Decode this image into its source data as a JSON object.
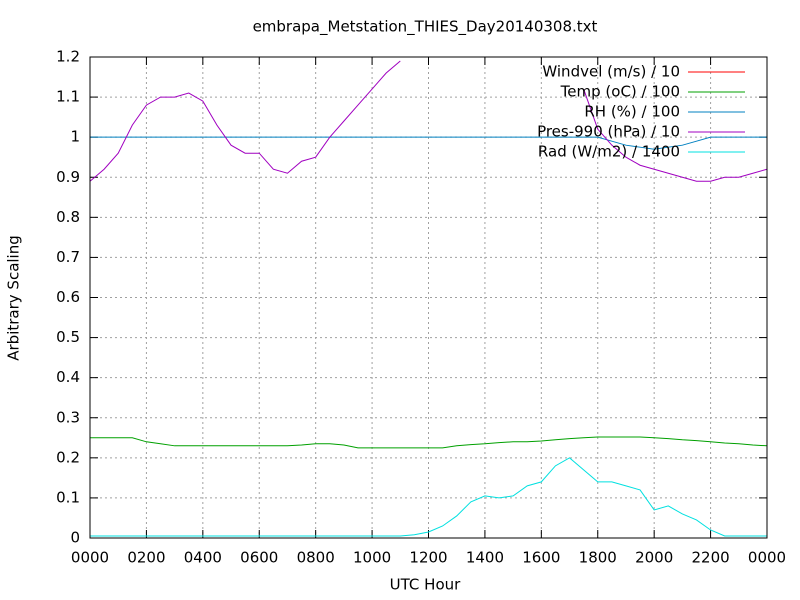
{
  "chart_data": {
    "type": "line",
    "title": "embrapa_Metstation_THIES_Day20140308.txt",
    "x_label": "UTC Hour",
    "y_label": "Arbitrary Scaling",
    "x": [
      0,
      0.5,
      1,
      1.5,
      2,
      2.5,
      3,
      3.5,
      4,
      4.5,
      5,
      5.5,
      6,
      6.5,
      7,
      7.5,
      8,
      8.5,
      9,
      9.5,
      10,
      10.5,
      11,
      11.5,
      12,
      12.5,
      13,
      13.5,
      14,
      14.5,
      15,
      15.5,
      16,
      16.5,
      17,
      17.5,
      18,
      18.5,
      19,
      19.5,
      20,
      20.5,
      21,
      21.5,
      22,
      22.5,
      23,
      23.5,
      24
    ],
    "series": [
      {
        "name": "Windvel (m/s) / 10",
        "color": "#ff0000",
        "values": [
          null,
          null,
          null,
          null,
          null,
          null,
          null,
          null,
          null,
          null,
          null,
          null,
          null,
          null,
          null,
          null,
          null,
          null,
          null,
          null,
          null,
          null,
          null,
          null,
          null,
          null,
          null,
          null,
          null,
          null,
          null,
          null,
          null,
          null,
          null,
          null,
          null,
          null,
          null,
          null,
          null,
          null,
          null,
          null,
          null,
          null,
          null,
          null,
          null
        ]
      },
      {
        "name": "Temp (oC) / 100",
        "color": "#00a000",
        "values": [
          0.25,
          0.25,
          0.25,
          0.25,
          0.24,
          0.235,
          0.23,
          0.23,
          0.23,
          0.23,
          0.23,
          0.23,
          0.23,
          0.23,
          0.23,
          0.232,
          0.235,
          0.235,
          0.232,
          0.225,
          0.225,
          0.225,
          0.225,
          0.225,
          0.225,
          0.225,
          0.23,
          0.233,
          0.235,
          0.238,
          0.24,
          0.24,
          0.242,
          0.245,
          0.248,
          0.25,
          0.252,
          0.252,
          0.252,
          0.252,
          0.25,
          0.248,
          0.245,
          0.243,
          0.24,
          0.237,
          0.235,
          0.232,
          0.23
        ]
      },
      {
        "name": "RH (%) / 100",
        "color": "#0080c0",
        "values": [
          1,
          1,
          1,
          1,
          1,
          1,
          1,
          1,
          1,
          1,
          1,
          1,
          1,
          1,
          1,
          1,
          1,
          1,
          1,
          1,
          1,
          1,
          1,
          1,
          1,
          1,
          1,
          1,
          1,
          1,
          1,
          1,
          1,
          1,
          1,
          1,
          1,
          0.99,
          0.98,
          0.975,
          0.97,
          0.975,
          0.98,
          0.99,
          1,
          1,
          1,
          1,
          1
        ]
      },
      {
        "name": "Pres-990 (hPa) / 10",
        "color": "#a000c0",
        "values": [
          0.89,
          0.92,
          0.96,
          1.03,
          1.08,
          1.1,
          1.1,
          1.11,
          1.09,
          1.03,
          0.98,
          0.96,
          0.96,
          0.92,
          0.91,
          0.94,
          0.95,
          1.0,
          1.04,
          1.08,
          1.12,
          1.16,
          1.19,
          null,
          null,
          null,
          null,
          null,
          null,
          null,
          null,
          null,
          null,
          null,
          null,
          1.12,
          1.02,
          0.98,
          0.95,
          0.93,
          0.92,
          0.91,
          0.9,
          0.89,
          0.89,
          0.9,
          0.9,
          0.91,
          0.92
        ]
      },
      {
        "name": "Rad (W/m2) / 1400",
        "color": "#00e0e0",
        "values": [
          0.005,
          0.005,
          0.005,
          0.005,
          0.005,
          0.005,
          0.005,
          0.005,
          0.005,
          0.005,
          0.005,
          0.005,
          0.005,
          0.005,
          0.005,
          0.005,
          0.005,
          0.005,
          0.005,
          0.005,
          0.005,
          0.005,
          0.005,
          0.008,
          0.015,
          0.03,
          0.055,
          0.09,
          0.105,
          0.1,
          0.105,
          0.13,
          0.14,
          0.18,
          0.2,
          0.17,
          0.14,
          0.14,
          0.13,
          0.12,
          0.07,
          0.08,
          0.06,
          0.045,
          0.02,
          0.005,
          0.005,
          0.005,
          0.005
        ]
      }
    ],
    "xlim": [
      0,
      24
    ],
    "xticks": [
      {
        "value": 0,
        "label": "0000"
      },
      {
        "value": 2,
        "label": "0200"
      },
      {
        "value": 4,
        "label": "0400"
      },
      {
        "value": 6,
        "label": "0600"
      },
      {
        "value": 8,
        "label": "0800"
      },
      {
        "value": 10,
        "label": "1000"
      },
      {
        "value": 12,
        "label": "1200"
      },
      {
        "value": 14,
        "label": "1400"
      },
      {
        "value": 16,
        "label": "1600"
      },
      {
        "value": 18,
        "label": "1800"
      },
      {
        "value": 20,
        "label": "2000"
      },
      {
        "value": 22,
        "label": "2200"
      },
      {
        "value": 24,
        "label": "0000"
      }
    ],
    "ylim": [
      0,
      1.2
    ],
    "yticks": [
      0,
      0.1,
      0.2,
      0.3,
      0.4,
      0.5,
      0.6,
      0.7,
      0.8,
      0.9,
      1,
      1.1,
      1.2
    ],
    "grid": true,
    "legend": "top-right"
  }
}
